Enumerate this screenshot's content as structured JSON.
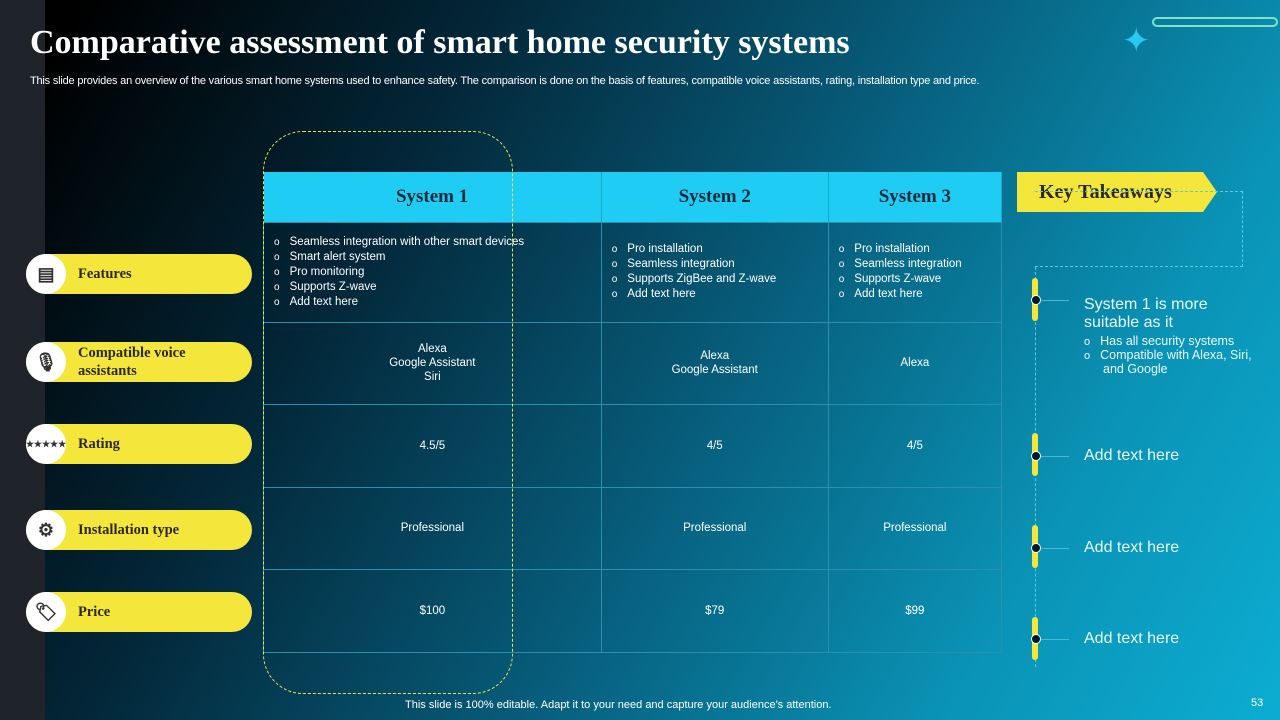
{
  "title": "Comparative assessment of smart home security systems",
  "subtitle": "This slide provides an overview of the various smart home systems used to enhance safety. The comparison is done on the basis of features, compatible voice assistants, rating, installation type and price.",
  "row_labels": [
    {
      "label": "Features",
      "icon": "presentation-board-icon"
    },
    {
      "label": "Compatible voice assistants",
      "icon": "microphone-icon"
    },
    {
      "label": "Rating",
      "icon": "rating-gauge-icon"
    },
    {
      "label": "Installation type",
      "icon": "wrench-gear-icon"
    },
    {
      "label": "Price",
      "icon": "price-tag-icon"
    }
  ],
  "systems": [
    {
      "name": "System 1",
      "features": [
        "Seamless integration with other smart devices",
        "Smart alert system",
        "Pro monitoring",
        "Supports Z-wave",
        "Add text here"
      ],
      "voice": [
        "Alexa",
        "Google Assistant",
        "Siri"
      ],
      "rating": "4.5/5",
      "installation": "Professional",
      "price": "$100"
    },
    {
      "name": "System 2",
      "features": [
        "Pro installation",
        "Seamless integration",
        "Supports ZigBee and Z-wave",
        "Add text here"
      ],
      "voice": [
        "Alexa",
        "Google Assistant"
      ],
      "rating": "4/5",
      "installation": "Professional",
      "price": "$79"
    },
    {
      "name": "System 3",
      "features": [
        "Pro installation",
        "Seamless integration",
        "Supports Z-wave",
        "Add text here"
      ],
      "voice": [
        "Alexa"
      ],
      "rating": "4/5",
      "installation": "Professional",
      "price": "$99"
    }
  ],
  "takeaways": {
    "heading": "Key Takeaways",
    "items": [
      {
        "text": "System 1 is more suitable as it",
        "bullets": [
          "Has all security systems",
          "Compatible with Alexa, Siri, and Google"
        ]
      },
      {
        "text": "Add text here"
      },
      {
        "text": "Add text here"
      },
      {
        "text": "Add text here"
      }
    ]
  },
  "footer": "This slide is 100% editable. Adapt it to your need and capture your audience's attention.",
  "page_number": "53",
  "colors": {
    "accent_yellow": "#f5e63b",
    "header_cyan": "#1fcdf4"
  }
}
